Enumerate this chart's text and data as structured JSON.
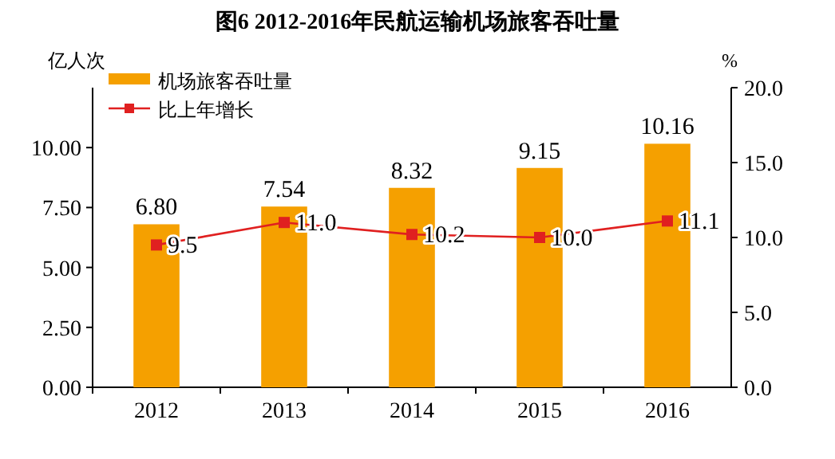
{
  "chart_data": {
    "type": "bar",
    "title": "图6 2012-2016年民航运输机场旅客吞吐量",
    "ylabel": "亿人次",
    "y2label": "%",
    "categories": [
      "2012",
      "2013",
      "2014",
      "2015",
      "2016"
    ],
    "series": [
      {
        "name": "机场旅客吞吐量",
        "color": "#f5a000",
        "values": [
          6.8,
          7.54,
          8.32,
          9.15,
          10.16
        ],
        "value_labels": [
          "6.80",
          "7.54",
          "8.32",
          "9.15",
          "10.16"
        ]
      },
      {
        "name": "比上年增长",
        "type": "line",
        "axis": "y2",
        "color": "#e02020",
        "marker": "square",
        "values": [
          9.5,
          11.0,
          10.2,
          10.0,
          11.1
        ],
        "value_labels": [
          "9.5",
          "11.0",
          "10.2",
          "10.0",
          "11.1"
        ]
      }
    ],
    "ylim": [
      0,
      12.5
    ],
    "yticks": [
      {
        "value": 0,
        "label": "0.00"
      },
      {
        "value": 2.5,
        "label": "2.50"
      },
      {
        "value": 5,
        "label": "5.00"
      },
      {
        "value": 7.5,
        "label": "7.50"
      },
      {
        "value": 10,
        "label": "10.00"
      }
    ],
    "y2lim": [
      0,
      20
    ],
    "y2ticks": [
      {
        "value": 0,
        "label": "0.0"
      },
      {
        "value": 5,
        "label": "5.0"
      },
      {
        "value": 10,
        "label": "10.0"
      },
      {
        "value": 15,
        "label": "15.0"
      },
      {
        "value": 20,
        "label": "20.0"
      }
    ],
    "legend": "top left",
    "grid": false
  }
}
